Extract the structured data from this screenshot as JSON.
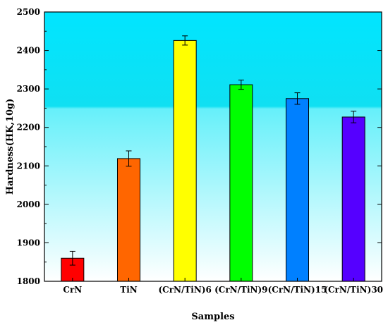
{
  "chart_data": {
    "type": "bar",
    "categories": [
      "CrN",
      "TiN",
      "(CrN/TiN)6",
      "(CrN/TiN)9",
      "(CrN/TiN)15",
      "(CrN/TiN)30"
    ],
    "values": [
      1860,
      2119,
      2426,
      2311,
      2275,
      2227
    ],
    "errors": [
      18,
      20,
      12,
      12,
      15,
      15
    ],
    "colors": [
      "#ff0000",
      "#ff6600",
      "#ffff00",
      "#00ff00",
      "#0080ff",
      "#5500ff"
    ],
    "xlabel": "Samples",
    "ylabel": "Hardness(HK,10g)",
    "ylim": [
      1800,
      2500
    ],
    "yticks": [
      "1800",
      "1900",
      "2000",
      "2100",
      "2200",
      "2300",
      "2400",
      "2500"
    ],
    "background_gradient": [
      "#00e5ff",
      "#ffffff"
    ],
    "grid": false
  }
}
